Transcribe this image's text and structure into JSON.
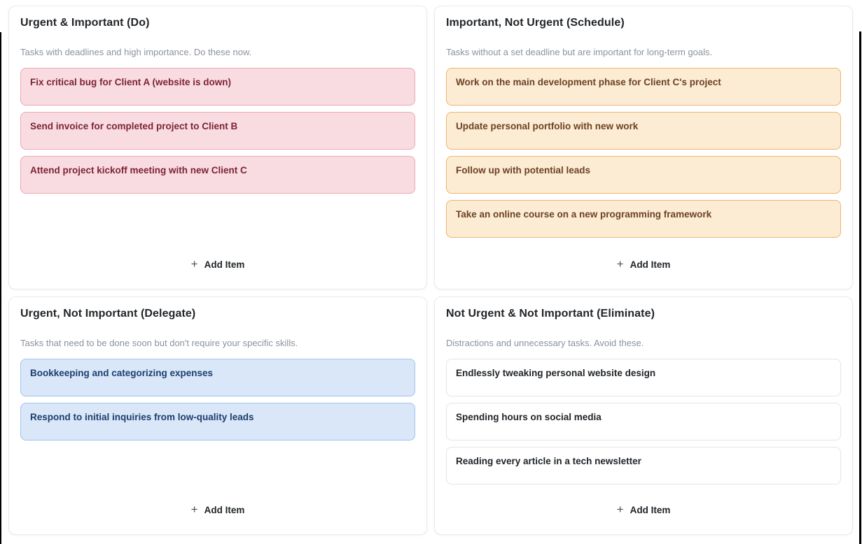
{
  "page": {
    "background": "#ffffff",
    "title_color": "#212529",
    "description_color": "#8b939c"
  },
  "add_item": {
    "icon": "+",
    "label": "Add Item"
  },
  "quadrants": [
    {
      "id": "do",
      "title": "Urgent & Important (Do)",
      "description": "Tasks with deadlines and high importance. Do these now.",
      "colors": {
        "bg": "#f9dce1",
        "border": "#eda9b1",
        "text": "#7d2334"
      },
      "items": [
        "Fix critical bug for Client A (website is down)",
        "Send invoice for completed project to Client B",
        "Attend project kickoff meeting with new Client C"
      ]
    },
    {
      "id": "schedule",
      "title": "Important, Not Urgent (Schedule)",
      "description": "Tasks without a set deadline but are important for long-term goals.",
      "colors": {
        "bg": "#fcecd4",
        "border": "#f2b46e",
        "text": "#6b4223"
      },
      "items": [
        "Work on the main development phase for Client C's project",
        "Update personal portfolio with new work",
        "Follow up with potential leads",
        "Take an online course on a new programming framework"
      ]
    },
    {
      "id": "delegate",
      "title": "Urgent, Not Important (Delegate)",
      "description": "Tasks that need to be done soon but don't require your specific skills.",
      "colors": {
        "bg": "#d9e7f9",
        "border": "#a2c2ee",
        "text": "#1c3e6e"
      },
      "items": [
        "Bookkeeping and categorizing expenses",
        "Respond to initial inquiries from low-quality leads"
      ]
    },
    {
      "id": "eliminate",
      "title": "Not Urgent & Not Important (Eliminate)",
      "description": "Distractions and unnecessary tasks. Avoid these.",
      "colors": {
        "bg": "#ffffff",
        "border": "#e2e5e9",
        "text": "#212529"
      },
      "items": [
        "Endlessly tweaking personal website design",
        "Spending hours on social media",
        "Reading every article in a tech newsletter"
      ]
    }
  ]
}
